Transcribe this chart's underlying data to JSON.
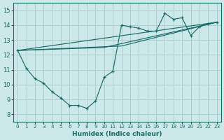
{
  "xlabel": "Humidex (Indice chaleur)",
  "bg_color": "#cce8e8",
  "grid_color": "#aacfcf",
  "line_color": "#1a6b6b",
  "xlim": [
    -0.5,
    23.5
  ],
  "ylim": [
    7.5,
    15.5
  ],
  "xticks": [
    0,
    1,
    2,
    3,
    4,
    5,
    6,
    7,
    8,
    9,
    10,
    11,
    12,
    13,
    14,
    15,
    16,
    17,
    18,
    19,
    20,
    21,
    22,
    23
  ],
  "yticks": [
    8,
    9,
    10,
    11,
    12,
    13,
    14,
    15
  ],
  "curve1_x": [
    0,
    1,
    2,
    3,
    4,
    5,
    6,
    7,
    8,
    9,
    10,
    11,
    12,
    13,
    14,
    15,
    16,
    17,
    18,
    19,
    20,
    21,
    22,
    23
  ],
  "curve1_y": [
    12.3,
    11.1,
    10.4,
    10.1,
    9.5,
    9.1,
    8.6,
    8.6,
    8.4,
    8.9,
    10.5,
    10.9,
    14.0,
    13.9,
    13.8,
    13.6,
    13.6,
    14.8,
    14.4,
    14.5,
    13.3,
    13.9,
    14.1,
    14.2
  ],
  "line1_x": [
    0,
    23
  ],
  "line1_y": [
    12.3,
    14.2
  ],
  "line2_x": [
    0,
    12,
    23
  ],
  "line2_y": [
    12.3,
    12.6,
    14.2
  ],
  "line3_x": [
    0,
    10,
    23
  ],
  "line3_y": [
    12.3,
    12.5,
    14.2
  ]
}
